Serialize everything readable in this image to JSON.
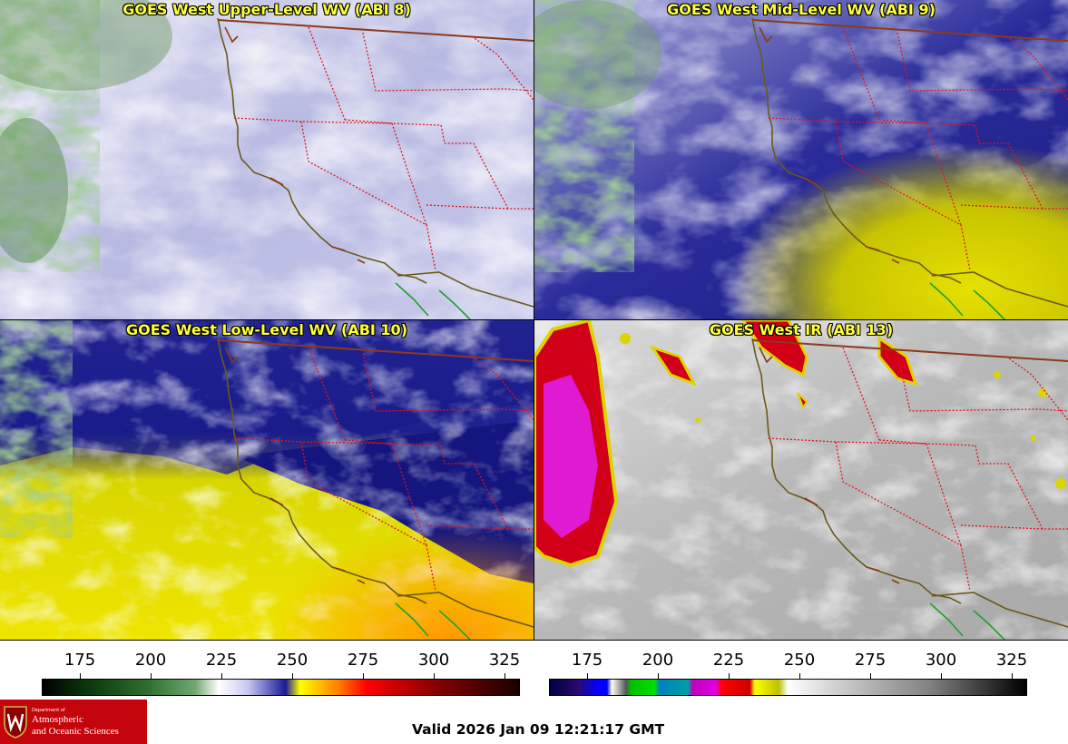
{
  "panels": [
    {
      "title": "GOES West Upper-Level WV (ABI 8)"
    },
    {
      "title": "GOES West Mid-Level WV (ABI 9)"
    },
    {
      "title": "GOES West Low-Level WV (ABI 10)"
    },
    {
      "title": "GOES West IR (ABI 13)"
    }
  ],
  "colorbars": [
    {
      "ticks": [
        "175",
        "200",
        "225",
        "250",
        "275",
        "300",
        "325"
      ],
      "colors": [
        "#000000",
        "#0d3a0d",
        "#2e6e2e",
        "#70a870",
        "#ffffff",
        "#c8c8f0",
        "#1a1a9a",
        "#ffff00",
        "#ff8000",
        "#ff0000",
        "#8b0000",
        "#1a0000"
      ]
    },
    {
      "ticks": [
        "175",
        "200",
        "225",
        "250",
        "275",
        "300",
        "325"
      ],
      "colors": [
        "#000040",
        "#0000ff",
        "#ffffff",
        "#00c000",
        "#00a0a0",
        "#c000c0",
        "#ff0000",
        "#ffff00",
        "#ffffff",
        "#808080",
        "#000000"
      ]
    }
  ],
  "valid": "Valid 2026 Jan 09 12:21:17 GMT",
  "logo": {
    "dept": "Department of",
    "line1": "Atmospheric",
    "line2": "and Oceanic Sciences"
  }
}
